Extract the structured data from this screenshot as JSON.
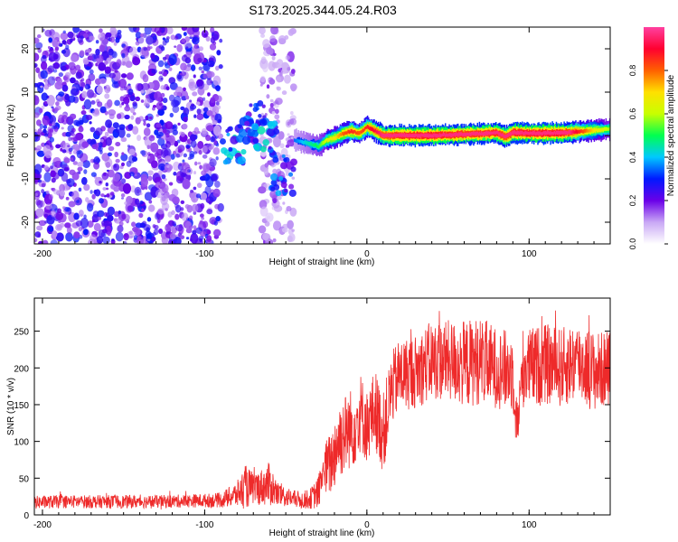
{
  "title": "S173.2025.344.05.24.R03",
  "colors": {
    "snr_line": "#ee2a2a",
    "scatter": "#7a0fe0",
    "scatter_light": "#c9a8f5",
    "axis": "#000000",
    "colormap": [
      "#ffffff",
      "#c9a8f5",
      "#6a00e8",
      "#0019ff",
      "#00c8ff",
      "#00ff50",
      "#c8ff00",
      "#ffe000",
      "#ff6000",
      "#ff0030",
      "#ff40a0"
    ]
  },
  "chart_data": [
    {
      "type": "heatmap",
      "name": "spectrogram",
      "xlabel": "Height of straight line (km)",
      "ylabel": "Frequency (Hz)",
      "xlim": [
        -205,
        150
      ],
      "ylim": [
        -25,
        25
      ],
      "xticks": [
        -200,
        -100,
        0,
        100
      ],
      "yticks": [
        -20,
        -10,
        0,
        10,
        20
      ],
      "grid": false,
      "colorbar": {
        "label": "Normalized spectral amplitude",
        "range": [
          0,
          1
        ],
        "ticks": [
          "0.0",
          "0.2",
          "0.4",
          "0.6",
          "0.8"
        ]
      },
      "noise_region": {
        "x_range": [
          -205,
          -90
        ],
        "freq_range": [
          -25,
          25
        ],
        "amplitude": 0.2
      },
      "noise_strip": {
        "x_range": [
          -65,
          -45
        ],
        "freq_range": [
          -25,
          25
        ],
        "amplitude": 0.12
      },
      "blobs": [
        {
          "x": -83,
          "freq": -2,
          "amplitude": 0.35
        },
        {
          "x": -70,
          "freq": 3,
          "amplitude": 0.3
        },
        {
          "x": -62,
          "freq": 0,
          "amplitude": 0.35
        },
        {
          "x": -52,
          "freq": -9,
          "amplitude": 0.3
        }
      ],
      "ridge": {
        "x": [
          -45,
          -40,
          -35,
          -30,
          -25,
          -20,
          -15,
          -10,
          -5,
          0,
          5,
          10,
          20,
          40,
          60,
          80,
          85,
          90,
          100,
          120,
          140,
          150
        ],
        "freq": [
          -1,
          -1.5,
          -2,
          -2.5,
          -1,
          -0.5,
          0.5,
          1,
          0.5,
          2,
          1,
          0,
          0,
          0,
          0.3,
          0.6,
          -0.3,
          0.7,
          0.5,
          0.6,
          1.2,
          1.5
        ],
        "amplitude": [
          0.3,
          0.35,
          0.4,
          0.45,
          0.55,
          0.6,
          0.7,
          0.75,
          0.7,
          0.75,
          0.8,
          0.85,
          0.9,
          0.92,
          0.88,
          0.9,
          0.85,
          0.9,
          0.92,
          0.92,
          0.6,
          0.5
        ]
      }
    },
    {
      "type": "line",
      "name": "snr",
      "xlabel": "Height of straight line (km)",
      "ylabel": "SNR (10 * v/v)",
      "xlim": [
        -205,
        150
      ],
      "ylim": [
        0,
        295
      ],
      "xticks": [
        -200,
        -100,
        0,
        100
      ],
      "yticks": [
        0,
        50,
        100,
        150,
        200,
        250
      ],
      "grid": false,
      "series": [
        {
          "name": "SNR",
          "x": [
            -205,
            -190,
            -170,
            -150,
            -130,
            -110,
            -90,
            -80,
            -75,
            -70,
            -65,
            -60,
            -55,
            -50,
            -45,
            -40,
            -35,
            -30,
            -27,
            -22,
            -18,
            -12,
            -8,
            -4,
            0,
            5,
            10,
            15,
            20,
            30,
            40,
            50,
            60,
            70,
            80,
            90,
            93,
            96,
            100,
            110,
            120,
            130,
            140,
            150
          ],
          "y": [
            17,
            18,
            18,
            18,
            18,
            19,
            20,
            28,
            38,
            36,
            38,
            42,
            28,
            25,
            22,
            20,
            22,
            30,
            60,
            70,
            100,
            115,
            120,
            140,
            120,
            145,
            110,
            170,
            190,
            195,
            210,
            210,
            205,
            210,
            200,
            195,
            120,
            200,
            200,
            205,
            200,
            210,
            195,
            200
          ],
          "noise": [
            9,
            9,
            9,
            9,
            9,
            9,
            10,
            18,
            30,
            22,
            25,
            30,
            18,
            14,
            12,
            12,
            14,
            22,
            35,
            45,
            55,
            55,
            55,
            55,
            50,
            55,
            55,
            50,
            50,
            50,
            55,
            55,
            60,
            60,
            55,
            55,
            30,
            55,
            55,
            55,
            55,
            55,
            55,
            50
          ]
        }
      ]
    }
  ]
}
